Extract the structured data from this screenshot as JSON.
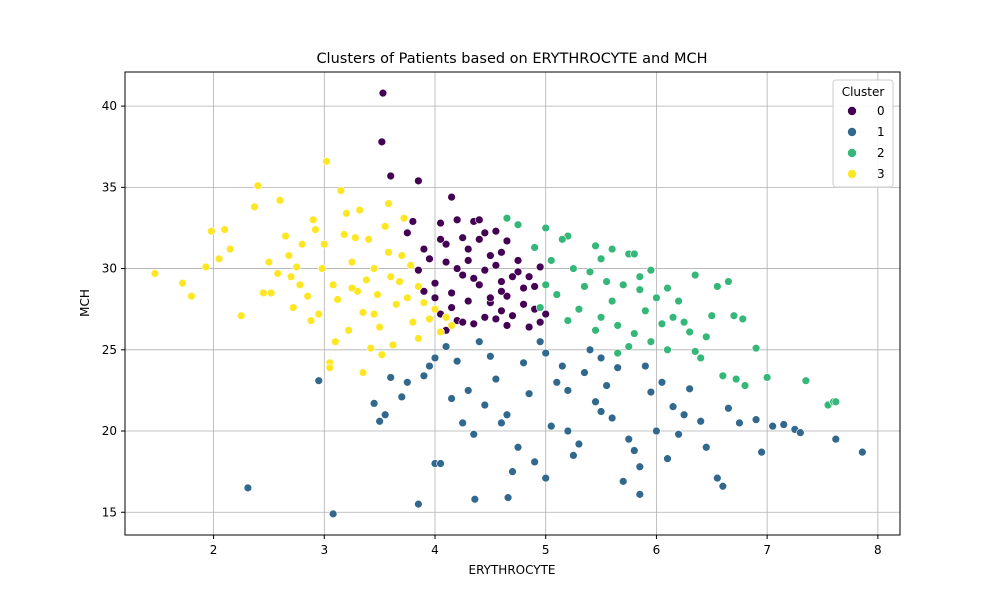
{
  "chart_data": {
    "type": "scatter",
    "title": "Clusters of Patients based on ERYTHROCYTE and MCH",
    "xlabel": "ERYTHROCYTE",
    "ylabel": "MCH",
    "xlim": [
      1.2,
      8.2
    ],
    "ylim": [
      13.6,
      42.1
    ],
    "xticks": [
      2,
      3,
      4,
      5,
      6,
      7,
      8
    ],
    "yticks": [
      15,
      20,
      25,
      30,
      35,
      40
    ],
    "grid": true,
    "legend": {
      "title": "Cluster",
      "placement": "top-right"
    },
    "series": [
      {
        "name": "0",
        "color": "#440154",
        "points": [
          [
            3.53,
            40.8
          ],
          [
            3.52,
            37.8
          ],
          [
            3.6,
            35.7
          ],
          [
            3.85,
            35.4
          ],
          [
            4.15,
            34.4
          ],
          [
            3.8,
            32.9
          ],
          [
            3.9,
            31.2
          ],
          [
            4.05,
            32.8
          ],
          [
            4.2,
            33.0
          ],
          [
            4.35,
            32.9
          ],
          [
            4.4,
            31.8
          ],
          [
            4.55,
            32.3
          ],
          [
            4.6,
            31.0
          ],
          [
            4.1,
            30.4
          ],
          [
            4.25,
            29.6
          ],
          [
            4.45,
            29.9
          ],
          [
            4.6,
            29.2
          ],
          [
            4.75,
            30.5
          ],
          [
            4.85,
            29.5
          ],
          [
            4.0,
            29.1
          ],
          [
            4.15,
            28.5
          ],
          [
            4.3,
            28.0
          ],
          [
            4.5,
            27.9
          ],
          [
            4.65,
            28.3
          ],
          [
            4.8,
            28.8
          ],
          [
            4.9,
            27.5
          ],
          [
            4.05,
            27.2
          ],
          [
            4.2,
            26.8
          ],
          [
            4.35,
            26.6
          ],
          [
            4.55,
            26.9
          ],
          [
            4.7,
            27.1
          ],
          [
            4.85,
            26.4
          ],
          [
            4.95,
            26.7
          ],
          [
            4.1,
            31.5
          ],
          [
            4.3,
            31.2
          ],
          [
            4.5,
            30.8
          ],
          [
            4.65,
            31.7
          ],
          [
            4.2,
            30.0
          ],
          [
            4.4,
            29.0
          ],
          [
            4.6,
            28.6
          ],
          [
            4.75,
            29.8
          ],
          [
            3.95,
            30.6
          ],
          [
            4.0,
            28.2
          ],
          [
            4.15,
            27.6
          ],
          [
            4.25,
            31.9
          ],
          [
            4.45,
            32.2
          ],
          [
            4.55,
            30.2
          ],
          [
            4.7,
            29.5
          ],
          [
            4.8,
            27.8
          ],
          [
            4.9,
            28.9
          ],
          [
            5.0,
            27.2
          ],
          [
            4.35,
            29.4
          ],
          [
            4.5,
            28.2
          ],
          [
            4.6,
            27.4
          ],
          [
            3.85,
            29.9
          ],
          [
            3.9,
            28.6
          ],
          [
            4.1,
            26.2
          ],
          [
            4.95,
            30.1
          ],
          [
            4.3,
            30.5
          ],
          [
            4.45,
            27.0
          ],
          [
            4.05,
            31.8
          ],
          [
            4.65,
            26.5
          ],
          [
            3.75,
            32.2
          ],
          [
            4.4,
            33.0
          ],
          [
            4.25,
            26.7
          ]
        ]
      },
      {
        "name": "1",
        "color": "#31688e",
        "points": [
          [
            3.08,
            14.9
          ],
          [
            2.31,
            16.5
          ],
          [
            2.95,
            23.1
          ],
          [
            3.85,
            15.5
          ],
          [
            4.36,
            15.8
          ],
          [
            4.66,
            15.9
          ],
          [
            3.5,
            20.6
          ],
          [
            3.45,
            21.7
          ],
          [
            3.7,
            22.1
          ],
          [
            3.9,
            23.4
          ],
          [
            4.0,
            18.0
          ],
          [
            4.05,
            18.0
          ],
          [
            4.2,
            24.3
          ],
          [
            4.3,
            22.5
          ],
          [
            4.45,
            21.6
          ],
          [
            4.6,
            20.5
          ],
          [
            4.75,
            19.0
          ],
          [
            4.9,
            18.1
          ],
          [
            5.05,
            20.3
          ],
          [
            5.2,
            22.5
          ],
          [
            5.35,
            23.6
          ],
          [
            5.45,
            21.8
          ],
          [
            5.6,
            20.8
          ],
          [
            5.75,
            19.5
          ],
          [
            5.85,
            17.8
          ],
          [
            6.0,
            20.0
          ],
          [
            6.15,
            21.5
          ],
          [
            6.3,
            22.6
          ],
          [
            6.45,
            19.0
          ],
          [
            6.55,
            17.1
          ],
          [
            6.6,
            16.6
          ],
          [
            6.75,
            20.5
          ],
          [
            6.95,
            18.7
          ],
          [
            7.05,
            20.3
          ],
          [
            7.25,
            20.1
          ],
          [
            7.62,
            19.5
          ],
          [
            7.86,
            18.7
          ],
          [
            6.05,
            23.0
          ],
          [
            5.9,
            24.0
          ],
          [
            5.5,
            24.5
          ],
          [
            5.0,
            24.8
          ],
          [
            4.5,
            24.6
          ],
          [
            4.1,
            25.2
          ],
          [
            3.95,
            24.0
          ],
          [
            3.75,
            23.0
          ],
          [
            4.25,
            20.5
          ],
          [
            4.55,
            23.2
          ],
          [
            4.85,
            22.3
          ],
          [
            5.15,
            24.0
          ],
          [
            5.3,
            19.2
          ],
          [
            5.55,
            22.8
          ],
          [
            5.8,
            18.8
          ],
          [
            6.2,
            19.8
          ],
          [
            6.4,
            20.6
          ],
          [
            6.65,
            21.4
          ],
          [
            4.7,
            17.5
          ],
          [
            5.0,
            17.1
          ],
          [
            4.35,
            19.8
          ],
          [
            5.25,
            18.5
          ],
          [
            5.7,
            16.9
          ],
          [
            5.85,
            16.1
          ],
          [
            6.1,
            18.3
          ],
          [
            6.9,
            20.7
          ],
          [
            7.15,
            20.4
          ],
          [
            7.3,
            19.9
          ],
          [
            3.6,
            23.3
          ],
          [
            4.15,
            22.0
          ],
          [
            4.4,
            25.5
          ],
          [
            4.8,
            24.2
          ],
          [
            5.1,
            23.0
          ],
          [
            5.4,
            25.0
          ],
          [
            5.65,
            23.9
          ],
          [
            5.95,
            22.4
          ],
          [
            6.25,
            21.0
          ],
          [
            4.0,
            24.5
          ],
          [
            4.65,
            21.0
          ],
          [
            5.2,
            20.0
          ],
          [
            5.5,
            21.2
          ],
          [
            3.55,
            21.0
          ],
          [
            4.95,
            25.5
          ]
        ]
      },
      {
        "name": "2",
        "color": "#35b779",
        "points": [
          [
            4.65,
            33.1
          ],
          [
            4.75,
            32.7
          ],
          [
            5.0,
            32.5
          ],
          [
            5.2,
            32.0
          ],
          [
            5.45,
            31.4
          ],
          [
            5.6,
            31.2
          ],
          [
            5.75,
            30.9
          ],
          [
            5.8,
            30.9
          ],
          [
            5.05,
            30.5
          ],
          [
            5.25,
            30.0
          ],
          [
            5.4,
            29.8
          ],
          [
            5.55,
            29.2
          ],
          [
            5.7,
            29.0
          ],
          [
            5.85,
            28.7
          ],
          [
            6.0,
            28.2
          ],
          [
            6.2,
            28.0
          ],
          [
            6.35,
            29.6
          ],
          [
            6.5,
            27.1
          ],
          [
            6.7,
            27.1
          ],
          [
            6.78,
            26.9
          ],
          [
            6.9,
            25.1
          ],
          [
            5.1,
            28.4
          ],
          [
            5.3,
            27.5
          ],
          [
            5.5,
            27.0
          ],
          [
            5.65,
            26.5
          ],
          [
            5.8,
            26.0
          ],
          [
            5.95,
            25.5
          ],
          [
            6.1,
            25.0
          ],
          [
            6.25,
            26.7
          ],
          [
            6.4,
            24.5
          ],
          [
            6.6,
            23.4
          ],
          [
            6.72,
            23.2
          ],
          [
            6.8,
            22.8
          ],
          [
            7.0,
            23.3
          ],
          [
            7.35,
            23.1
          ],
          [
            7.55,
            21.6
          ],
          [
            7.6,
            21.8
          ],
          [
            7.62,
            21.8
          ],
          [
            4.9,
            31.3
          ],
          [
            5.15,
            31.8
          ],
          [
            5.35,
            28.9
          ],
          [
            5.6,
            28.0
          ],
          [
            5.9,
            27.4
          ],
          [
            6.15,
            27.0
          ],
          [
            6.3,
            26.1
          ],
          [
            6.45,
            25.8
          ],
          [
            6.55,
            28.9
          ],
          [
            6.65,
            29.2
          ],
          [
            5.45,
            26.2
          ],
          [
            5.75,
            25.2
          ],
          [
            5.2,
            26.8
          ],
          [
            5.0,
            29.0
          ],
          [
            4.95,
            27.6
          ],
          [
            5.5,
            30.6
          ],
          [
            5.85,
            29.5
          ],
          [
            6.05,
            26.6
          ],
          [
            6.35,
            24.9
          ],
          [
            5.65,
            24.8
          ],
          [
            5.95,
            29.9
          ],
          [
            6.1,
            28.8
          ]
        ]
      },
      {
        "name": "3",
        "color": "#fde725",
        "points": [
          [
            1.47,
            29.7
          ],
          [
            1.72,
            29.1
          ],
          [
            1.8,
            28.3
          ],
          [
            1.93,
            30.1
          ],
          [
            1.98,
            32.3
          ],
          [
            2.05,
            30.6
          ],
          [
            2.1,
            32.4
          ],
          [
            2.15,
            31.2
          ],
          [
            2.25,
            27.1
          ],
          [
            2.37,
            33.8
          ],
          [
            2.4,
            35.1
          ],
          [
            2.5,
            30.4
          ],
          [
            2.52,
            28.5
          ],
          [
            2.6,
            34.2
          ],
          [
            2.65,
            32.0
          ],
          [
            2.7,
            29.5
          ],
          [
            2.75,
            30.1
          ],
          [
            2.8,
            31.5
          ],
          [
            2.85,
            28.3
          ],
          [
            2.9,
            33.0
          ],
          [
            2.95,
            27.2
          ],
          [
            3.02,
            36.6
          ],
          [
            3.05,
            24.2
          ],
          [
            3.05,
            23.9
          ],
          [
            3.1,
            25.5
          ],
          [
            3.15,
            34.8
          ],
          [
            3.2,
            33.4
          ],
          [
            3.25,
            30.4
          ],
          [
            3.3,
            28.6
          ],
          [
            3.35,
            27.3
          ],
          [
            3.4,
            31.8
          ],
          [
            3.45,
            30.0
          ],
          [
            3.5,
            26.4
          ],
          [
            3.55,
            32.6
          ],
          [
            3.6,
            29.5
          ],
          [
            3.65,
            27.8
          ],
          [
            3.7,
            30.8
          ],
          [
            3.75,
            28.2
          ],
          [
            3.8,
            26.7
          ],
          [
            3.85,
            25.7
          ],
          [
            3.9,
            27.9
          ],
          [
            3.95,
            26.9
          ],
          [
            4.0,
            27.5
          ],
          [
            4.05,
            26.1
          ],
          [
            4.1,
            27.0
          ],
          [
            4.15,
            26.5
          ],
          [
            2.98,
            30.0
          ],
          [
            3.0,
            31.5
          ],
          [
            3.08,
            29.0
          ],
          [
            3.18,
            32.1
          ],
          [
            3.28,
            31.9
          ],
          [
            3.38,
            29.3
          ],
          [
            3.48,
            28.4
          ],
          [
            3.58,
            31.0
          ],
          [
            3.68,
            29.2
          ],
          [
            3.78,
            30.2
          ],
          [
            2.88,
            26.8
          ],
          [
            2.78,
            29.0
          ],
          [
            2.68,
            30.8
          ],
          [
            2.58,
            29.7
          ],
          [
            3.22,
            26.2
          ],
          [
            3.42,
            25.1
          ],
          [
            3.62,
            25.3
          ],
          [
            3.35,
            23.6
          ],
          [
            3.52,
            24.7
          ],
          [
            3.12,
            28.1
          ],
          [
            3.32,
            33.6
          ],
          [
            2.92,
            32.4
          ],
          [
            2.72,
            27.6
          ],
          [
            3.72,
            33.1
          ],
          [
            3.58,
            34.0
          ],
          [
            3.25,
            28.8
          ],
          [
            3.45,
            27.2
          ],
          [
            3.85,
            28.9
          ],
          [
            2.45,
            28.5
          ]
        ]
      }
    ]
  }
}
